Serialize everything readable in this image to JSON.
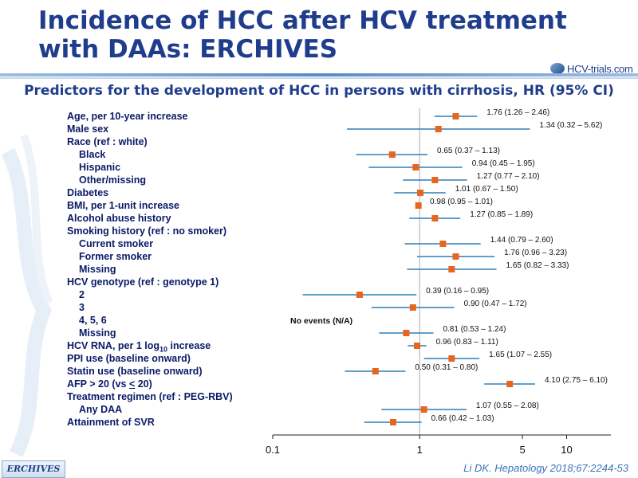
{
  "slide": {
    "title": "Incidence of HCC after HCV treatment with DAAs: ERCHIVES",
    "subtitle": "Predictors for the development of HCC in persons with cirrhosis, HR (95% CI)",
    "logo_text": "HCV-trials.com",
    "badge": "ERCHIVES",
    "source": "Li DK. Hepatology 2018;67:2244-53"
  },
  "chart_data": {
    "type": "forest",
    "axis_scale": "log",
    "xlim": [
      0.1,
      20
    ],
    "x_ticks": [
      0.1,
      1,
      5,
      10
    ],
    "x_tick_labels": [
      "0.1",
      "1",
      "5",
      "10"
    ],
    "reference_line": 1,
    "colors": {
      "marker": "#e8651e",
      "ci_line": "#2e7fb5",
      "ref_line": "#c8c8c8",
      "label": "#0a1a66"
    },
    "rows": [
      {
        "label": "Age, per 10-year increase",
        "indent": false,
        "hr": 1.76,
        "lo": 1.26,
        "hi": 2.46,
        "text": "1.76 (1.26 – 2.46)"
      },
      {
        "label": "Male sex",
        "indent": false,
        "hr": 1.34,
        "lo": 0.32,
        "hi": 5.62,
        "text": "1.34 (0.32 – 5.62)"
      },
      {
        "label": "Race (ref : white)",
        "indent": false
      },
      {
        "label": "Black",
        "indent": true,
        "hr": 0.65,
        "lo": 0.37,
        "hi": 1.13,
        "text": "0.65 (0.37 – 1.13)"
      },
      {
        "label": "Hispanic",
        "indent": true,
        "hr": 0.94,
        "lo": 0.45,
        "hi": 1.95,
        "text": "0.94 (0.45 – 1.95)"
      },
      {
        "label": "Other/missing",
        "indent": true,
        "hr": 1.27,
        "lo": 0.77,
        "hi": 2.1,
        "text": "1.27 (0.77 – 2.10)"
      },
      {
        "label": "Diabetes",
        "indent": false,
        "hr": 1.01,
        "lo": 0.67,
        "hi": 1.5,
        "text": "1.01 (0.67 – 1.50)"
      },
      {
        "label": "BMI, per 1-unit increase",
        "indent": false,
        "hr": 0.98,
        "lo": 0.95,
        "hi": 1.01,
        "text": "0.98 (0.95 – 1.01)"
      },
      {
        "label": "Alcohol abuse history",
        "indent": false,
        "hr": 1.27,
        "lo": 0.85,
        "hi": 1.89,
        "text": "1.27 (0.85 – 1.89)"
      },
      {
        "label": "Smoking history (ref : no smoker)",
        "indent": false
      },
      {
        "label": "Current smoker",
        "indent": true,
        "hr": 1.44,
        "lo": 0.79,
        "hi": 2.6,
        "text": "1.44 (0.79 – 2.60)"
      },
      {
        "label": "Former smoker",
        "indent": true,
        "hr": 1.76,
        "lo": 0.96,
        "hi": 3.23,
        "text": "1.76 (0.96 – 3.23)"
      },
      {
        "label": "Missing",
        "indent": true,
        "hr": 1.65,
        "lo": 0.82,
        "hi": 3.33,
        "text": "1.65 (0.82 – 3.33)"
      },
      {
        "label": "HCV genotype (ref : genotype 1)",
        "indent": false
      },
      {
        "label": "2",
        "indent": true,
        "hr": 0.39,
        "lo": 0.16,
        "hi": 0.95,
        "text": "0.39 (0.16 – 0.95)"
      },
      {
        "label": "3",
        "indent": true,
        "hr": 0.9,
        "lo": 0.47,
        "hi": 1.72,
        "text": "0.90 (0.47 – 1.72)"
      },
      {
        "label": "4, 5, 6",
        "indent": true,
        "text": "No events (N/A)"
      },
      {
        "label": "Missing",
        "indent": true,
        "hr": 0.81,
        "lo": 0.53,
        "hi": 1.24,
        "text": "0.81 (0.53 – 1.24)"
      },
      {
        "label": "HCV RNA, per 1 log",
        "label_sub": "10",
        "label_suffix": " increase",
        "indent": false,
        "hr": 0.96,
        "lo": 0.83,
        "hi": 1.11,
        "text": "0.96 (0.83 – 1.11)"
      },
      {
        "label": "PPI use (baseline onward)",
        "indent": false,
        "hr": 1.65,
        "lo": 1.07,
        "hi": 2.55,
        "text": "1.65 (1.07 – 2.55)"
      },
      {
        "label": "Statin use (baseline onward)",
        "indent": false,
        "hr": 0.5,
        "lo": 0.31,
        "hi": 0.8,
        "text": "0.50 (0.31 – 0.80)"
      },
      {
        "label": "AFP > 20 (vs ",
        "label_ul": "<",
        "label_suffix": " 20)",
        "indent": false,
        "hr": 4.1,
        "lo": 2.75,
        "hi": 6.1,
        "text": "4.10 (2.75 – 6.10)"
      },
      {
        "label": "Treatment regimen (ref : PEG-RBV)",
        "indent": false
      },
      {
        "label": "Any DAA",
        "indent": true,
        "hr": 1.07,
        "lo": 0.55,
        "hi": 2.08,
        "text": "1.07 (0.55 – 2.08)"
      },
      {
        "label": "Attainment of SVR",
        "indent": false,
        "hr": 0.66,
        "lo": 0.42,
        "hi": 1.03,
        "text": "0.66 (0.42 – 1.03)"
      }
    ]
  }
}
